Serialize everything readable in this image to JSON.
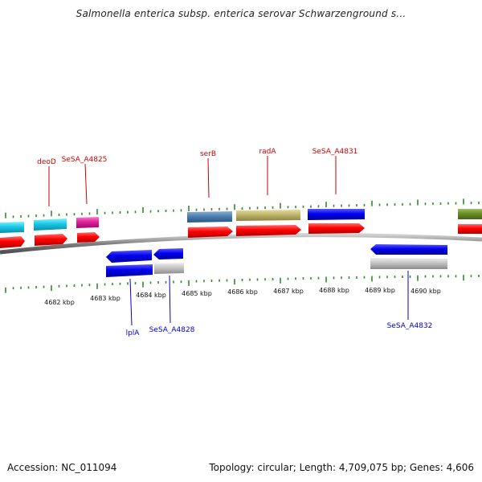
{
  "title": "Salmonella enterica subsp. enterica serovar Schwarzenground s...",
  "footer": {
    "accession": "Accession: NC_011094",
    "summary": "Topology: circular; Length: 4,709,075 bp; Genes: 4,606"
  },
  "colors": {
    "forward_label": "#cc0000",
    "reverse_label": "#0000cc",
    "backbone": "#888888",
    "tick": "#2e8b2e"
  },
  "scale_labels": [
    "4682 kbp",
    "4683 kbp",
    "4684 kbp",
    "4685 kbp",
    "4686 kbp",
    "4687 kbp",
    "4688 kbp",
    "4689 kbp",
    "4690 kbp"
  ],
  "gene_labels": {
    "forward": [
      "deoD",
      "SeSA_A4825",
      "serB",
      "radA",
      "SeSA_A4831"
    ],
    "reverse": [
      "lplA",
      "SeSA_A4828",
      "SeSA_A4832"
    ]
  }
}
